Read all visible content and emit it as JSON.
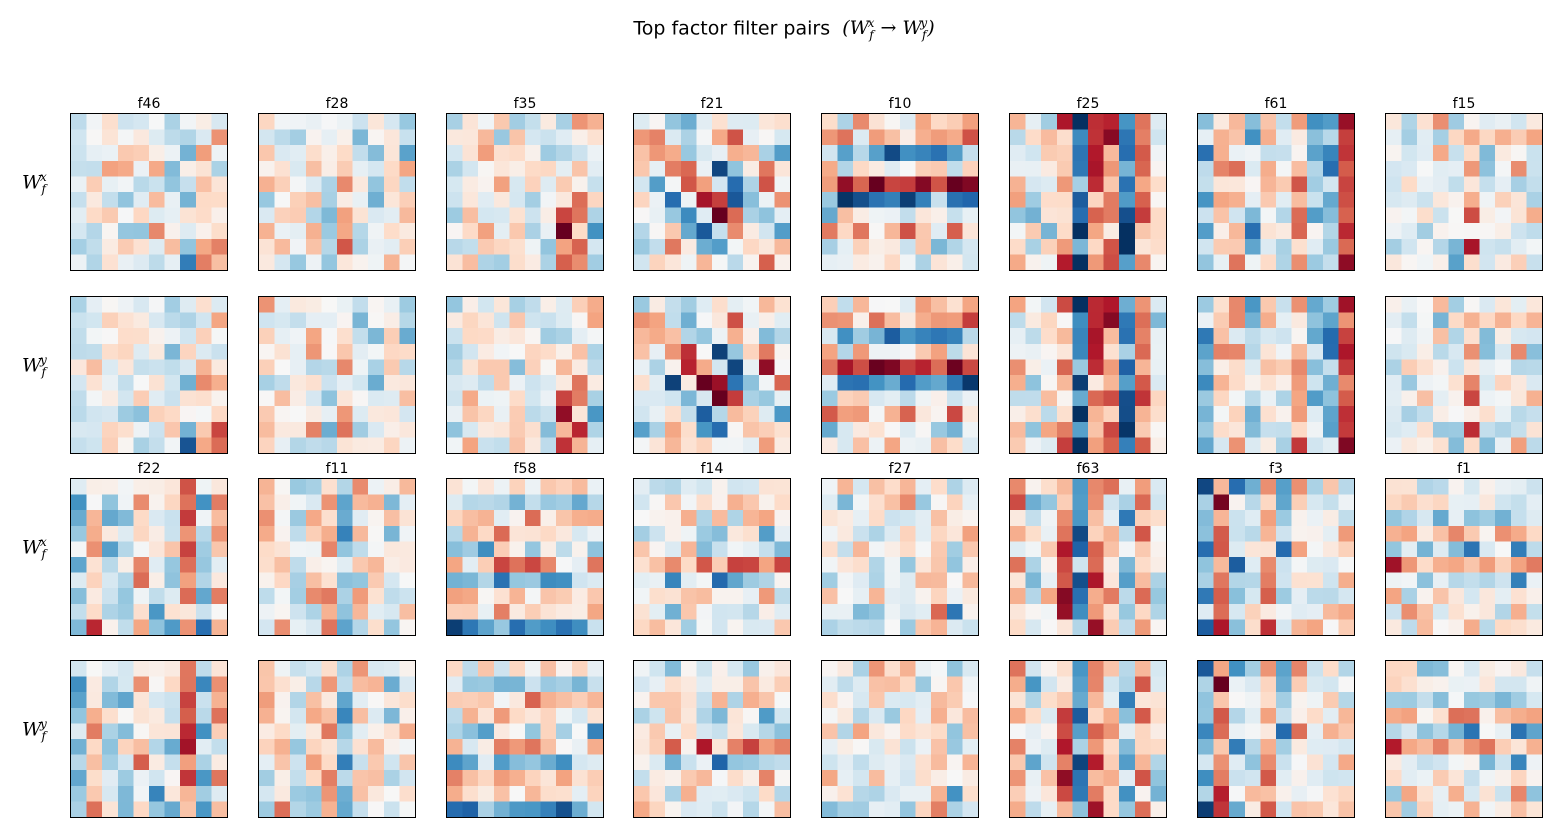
{
  "title": {
    "text": "Top factor filter pairs",
    "formula": "(W_f^x → W_f^y)"
  },
  "row_labels": [
    "W_f^x",
    "W_f^y",
    "W_f^x",
    "W_f^y"
  ],
  "colors": {
    "colormap": "RdBu_r",
    "negative": "#053061",
    "neutral": "#f7f7f7",
    "positive": "#67001f"
  },
  "chart_data": {
    "type": "heatmap",
    "grid_size": 10,
    "value_range": [
      -1,
      1
    ],
    "groups": [
      {
        "factors": [
          "f46",
          "f28",
          "f35",
          "f21",
          "f10",
          "f25",
          "f61",
          "f15"
        ]
      },
      {
        "factors": [
          "f22",
          "f11",
          "f58",
          "f14",
          "f27",
          "f63",
          "f3",
          "f1"
        ]
      }
    ],
    "patterns": [
      {
        "id": "f46",
        "kind": "blob",
        "pos": [
          8.2,
          8.6
        ],
        "band_width": 1.6,
        "amplitude": 0.9
      },
      {
        "id": "f28",
        "kind": "vertical",
        "pos": [
          5.0,
          3.5
        ],
        "band_width": 0.9,
        "amplitude": 0.6
      },
      {
        "id": "f35",
        "kind": "blob",
        "pos": [
          7.8,
          7.4
        ],
        "band_width": 2.0,
        "amplitude": 0.9
      },
      {
        "id": "f21",
        "kind": "diagonal",
        "pos": [
          3.0,
          5.0
        ],
        "band_width": 1.6,
        "amplitude": 0.8
      },
      {
        "id": "f10",
        "kind": "horizontal",
        "pos": [
          4.0,
          3.2
        ],
        "band_width": 1.0,
        "amplitude": 0.7
      },
      {
        "id": "f25",
        "kind": "vertical",
        "pos": [
          5.5,
          5.5
        ],
        "band_width": 0.9,
        "amplitude": 0.7
      },
      {
        "id": "f61",
        "kind": "vertical",
        "pos": [
          9.0,
          1.5
        ],
        "band_width": 1.0,
        "amplitude": 0.8
      },
      {
        "id": "f15",
        "kind": "blob",
        "pos": [
          8.0,
          5.0
        ],
        "band_width": 1.5,
        "amplitude": 0.6
      },
      {
        "id": "f22",
        "kind": "vertical",
        "pos": [
          6.8,
          1.0
        ],
        "band_width": 0.9,
        "amplitude": 0.6
      },
      {
        "id": "f11",
        "kind": "vertical",
        "pos": [
          4.0,
          3.0
        ],
        "band_width": 0.9,
        "amplitude": 0.6
      },
      {
        "id": "f58",
        "kind": "horizontal",
        "pos": [
          7.5,
          2.5
        ],
        "band_width": 1.0,
        "amplitude": 0.7
      },
      {
        "id": "f14",
        "kind": "horizontal",
        "pos": [
          5.0,
          4.0
        ],
        "band_width": 0.8,
        "amplitude": 0.6
      },
      {
        "id": "f27",
        "kind": "blob",
        "pos": [
          7.0,
          6.5
        ],
        "band_width": 1.6,
        "amplitude": 0.6
      },
      {
        "id": "f63",
        "kind": "vertical",
        "pos": [
          5.5,
          2.5
        ],
        "band_width": 0.8,
        "amplitude": 0.8
      },
      {
        "id": "f3",
        "kind": "vertical",
        "pos": [
          1.0,
          4.0
        ],
        "band_width": 0.8,
        "amplitude": 0.7
      },
      {
        "id": "f1",
        "kind": "horizontal",
        "pos": [
          5.0,
          3.5
        ],
        "band_width": 0.8,
        "amplitude": 0.7
      }
    ]
  }
}
